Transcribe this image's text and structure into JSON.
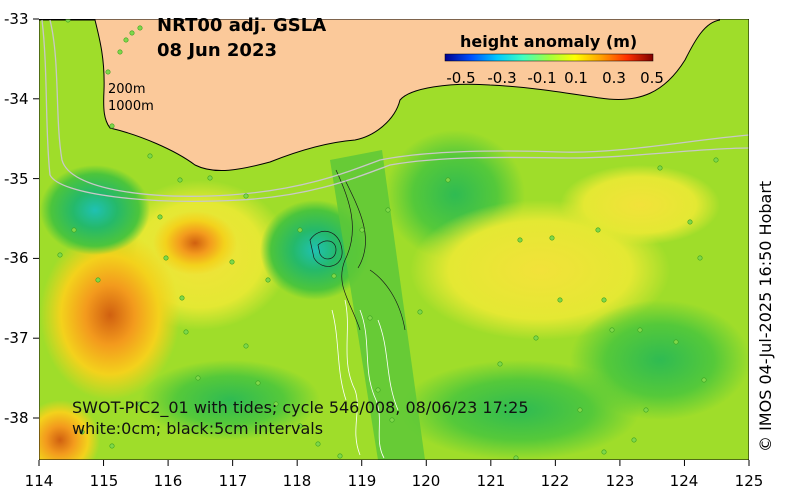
{
  "map": {
    "title_line1": "NRT00 adj. GSLA",
    "title_line2": "08 Jun 2023",
    "colorbar": {
      "label": "height anomaly (m)",
      "ticks": [
        "-0.5",
        "-0.3",
        "-0.1",
        "0.1",
        "0.3",
        "0.5"
      ],
      "colors": [
        "#00008f",
        "#0050ff",
        "#00c8ff",
        "#40ffc0",
        "#a0ff40",
        "#ffff00",
        "#ffa000",
        "#ff3000",
        "#800000"
      ]
    },
    "depth_labels": [
      "200m",
      "1000m"
    ],
    "y_axis": {
      "labels": [
        "-33",
        "-34",
        "-35",
        "-36",
        "-37",
        "-38"
      ]
    },
    "x_axis": {
      "labels": [
        "114",
        "115",
        "116",
        "117",
        "118",
        "119",
        "120",
        "121",
        "122",
        "123",
        "124",
        "125"
      ]
    },
    "swot_note_line1": "SWOT-PIC2_01 with tides; cycle 546/008, 08/06/23 17:25",
    "swot_note_line2": "white:0cm; black:5cm intervals",
    "credit": "© IMOS 04-Jul-2025 16:50 Hobart",
    "land_color": "#fbc99a",
    "sea_base_color": "#9fdd2a"
  }
}
